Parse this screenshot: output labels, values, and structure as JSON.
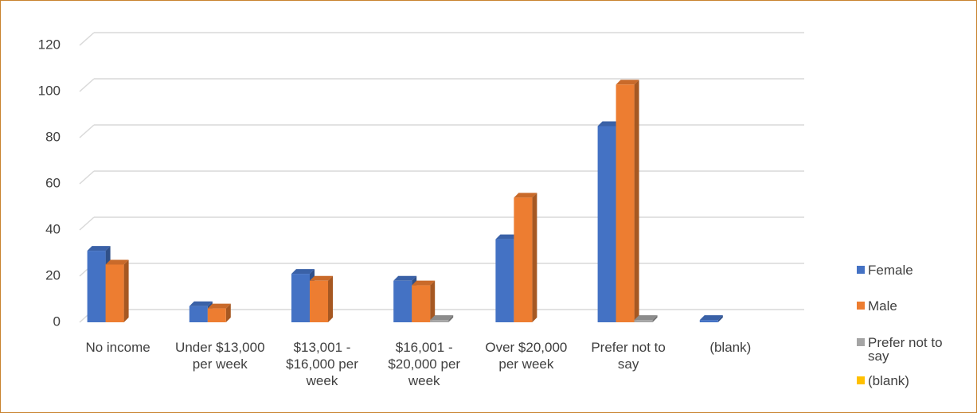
{
  "chart_data": {
    "type": "bar",
    "categories": [
      "No income",
      "Under $13,000 per week",
      "$13,001 - $16,000 per week",
      "$16,001 - $20,000 per week",
      "Over $20,000 per week",
      "Prefer not to say",
      "(blank)"
    ],
    "series": [
      {
        "name": "Female",
        "color": "#4472c4",
        "values": [
          31,
          7,
          21,
          18,
          36,
          85,
          1
        ]
      },
      {
        "name": "Male",
        "color": "#ed7d31",
        "values": [
          25,
          6,
          18,
          16,
          54,
          103,
          null
        ]
      },
      {
        "name": "Prefer not to say",
        "color": "#a5a5a5",
        "values": [
          null,
          null,
          null,
          1,
          null,
          1,
          null
        ]
      },
      {
        "name": "(blank)",
        "color": "#ffc000",
        "values": [
          null,
          null,
          null,
          null,
          null,
          null,
          null
        ]
      }
    ],
    "ylim": [
      0,
      120
    ],
    "yticks": [
      0,
      20,
      40,
      60,
      80,
      100,
      120
    ],
    "grid": true,
    "legend": "right"
  }
}
